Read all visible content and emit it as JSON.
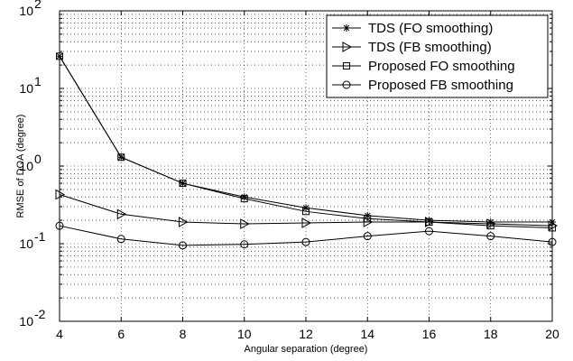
{
  "chart_data": {
    "type": "line",
    "xlabel": "Angular separation (degree)",
    "ylabel": "RMSE of DOA (degree)",
    "x": [
      4,
      6,
      8,
      10,
      12,
      14,
      16,
      18,
      20
    ],
    "xlim": [
      4,
      20
    ],
    "ylim": [
      0.01,
      100
    ],
    "yscale": "log",
    "grid": true,
    "legend_position": "top-right",
    "x_ticks": [
      "4",
      "6",
      "8",
      "10",
      "12",
      "14",
      "16",
      "18",
      "20"
    ],
    "y_ticks": [
      {
        "base": "10",
        "exp": "-2"
      },
      {
        "base": "10",
        "exp": "-1"
      },
      {
        "base": "10",
        "exp": "0"
      },
      {
        "base": "10",
        "exp": "1"
      },
      {
        "base": "10",
        "exp": "2"
      }
    ],
    "series": [
      {
        "name": "TDS (FO smoothing)",
        "marker": "star",
        "values": [
          26,
          1.3,
          0.6,
          0.4,
          0.29,
          0.23,
          0.2,
          0.19,
          0.19
        ]
      },
      {
        "name": "TDS (FB smoothing)",
        "marker": "triangle-right",
        "values": [
          0.43,
          0.24,
          0.19,
          0.18,
          0.185,
          0.19,
          0.19,
          0.18,
          0.17
        ]
      },
      {
        "name": "Proposed FO smoothing",
        "marker": "square",
        "values": [
          26,
          1.3,
          0.6,
          0.38,
          0.26,
          0.21,
          0.19,
          0.17,
          0.16
        ]
      },
      {
        "name": "Proposed FB smoothing",
        "marker": "circle",
        "values": [
          0.17,
          0.115,
          0.095,
          0.098,
          0.105,
          0.125,
          0.145,
          0.125,
          0.105
        ]
      }
    ]
  }
}
